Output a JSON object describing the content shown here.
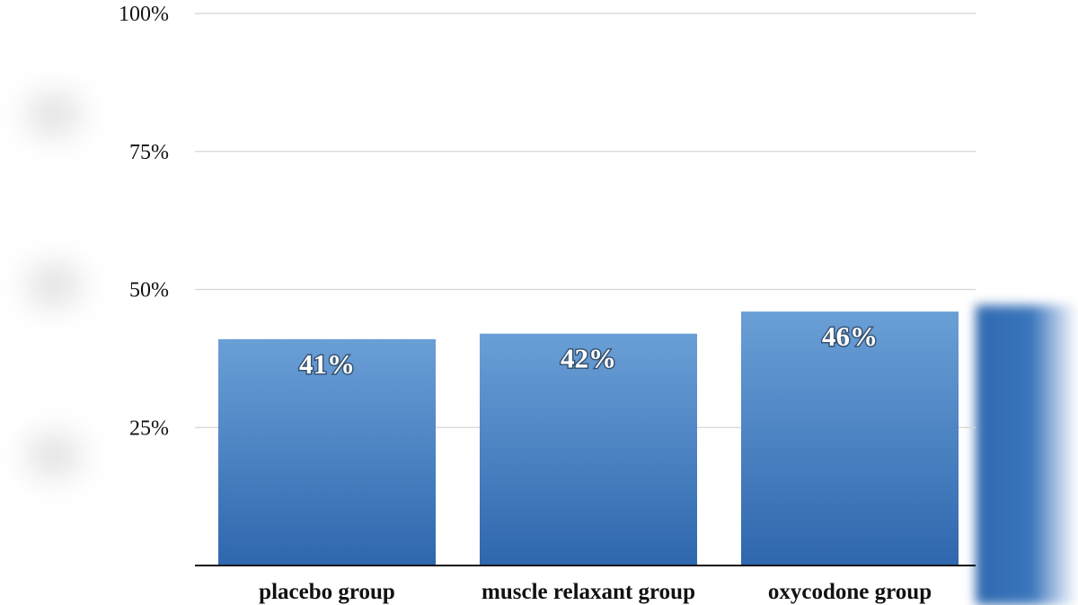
{
  "chart_data": {
    "type": "bar",
    "categories": [
      "placebo group",
      "muscle relaxant group",
      "oxycodone group"
    ],
    "values": [
      41,
      42,
      46
    ],
    "value_labels": [
      "41%",
      "42%",
      "46%"
    ],
    "yticks": [
      25,
      50,
      75,
      100
    ],
    "ytick_labels": [
      "25%",
      "50%",
      "75%",
      "100%"
    ],
    "ylim": [
      0,
      100
    ],
    "grid": true,
    "bar_color_top": "#6a9fd6",
    "bar_color_bottom": "#2f67ae"
  }
}
